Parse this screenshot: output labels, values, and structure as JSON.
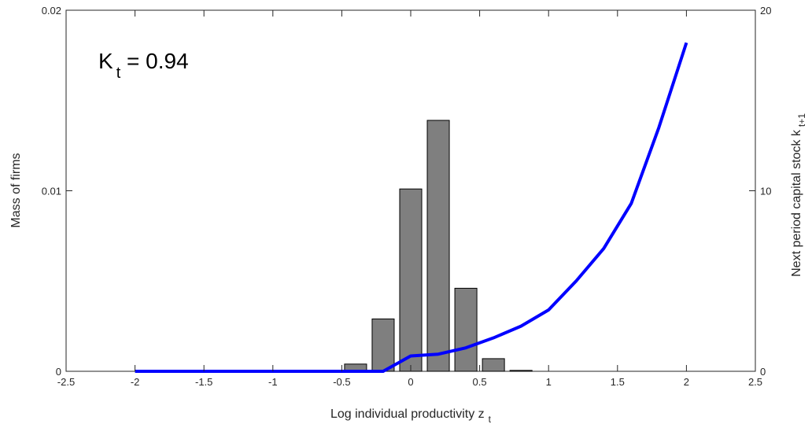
{
  "chart_data": {
    "type": "bar",
    "annotation": {
      "main": "K",
      "sub": "t",
      "rest": " = 0.94"
    },
    "xlabel": {
      "main": "Log individual productivity z",
      "sub": "t"
    },
    "ylabel_left": "Mass of firms",
    "ylabel_right": {
      "main": "Next period capital stock k",
      "sub": "t+1"
    },
    "xlim": [
      -2.5,
      2.5
    ],
    "ylim_left": [
      0,
      0.02
    ],
    "ylim_right": [
      0,
      20
    ],
    "x_ticks": [
      "-2.5",
      "-2",
      "-1.5",
      "-1",
      "-0.5",
      "0",
      "0.5",
      "1",
      "1.5",
      "2",
      "2.5"
    ],
    "x_tick_values": [
      -2.5,
      -2,
      -1.5,
      -1,
      -0.5,
      0,
      0.5,
      1,
      1.5,
      2,
      2.5
    ],
    "y_left_ticks": [
      "0",
      "0.01",
      "0.02"
    ],
    "y_left_tick_values": [
      0,
      0.01,
      0.02
    ],
    "y_right_ticks": [
      "0",
      "10",
      "20"
    ],
    "y_right_tick_values": [
      0,
      10,
      20
    ],
    "grid": false,
    "bar_series": {
      "axis": "left",
      "color": "#7f7f7f",
      "bar_width": 0.16,
      "x": [
        -0.4,
        -0.2,
        0.0,
        0.2,
        0.4,
        0.6,
        0.8
      ],
      "values": [
        0.0004,
        0.0029,
        0.0101,
        0.0139,
        0.0046,
        0.0007,
        5e-05
      ]
    },
    "line_series": {
      "axis": "right",
      "color": "#0000ff",
      "x": [
        -2.0,
        -1.8,
        -1.6,
        -1.4,
        -1.2,
        -1.0,
        -0.8,
        -0.6,
        -0.4,
        -0.2,
        0.0,
        0.2,
        0.4,
        0.6,
        0.8,
        1.0,
        1.2,
        1.4,
        1.6,
        1.8,
        2.0
      ],
      "values": [
        0,
        0,
        0,
        0,
        0,
        0,
        0,
        0,
        0,
        0,
        0.85,
        0.95,
        1.3,
        1.85,
        2.5,
        3.4,
        5.0,
        6.8,
        9.3,
        13.5,
        18.2
      ]
    }
  }
}
